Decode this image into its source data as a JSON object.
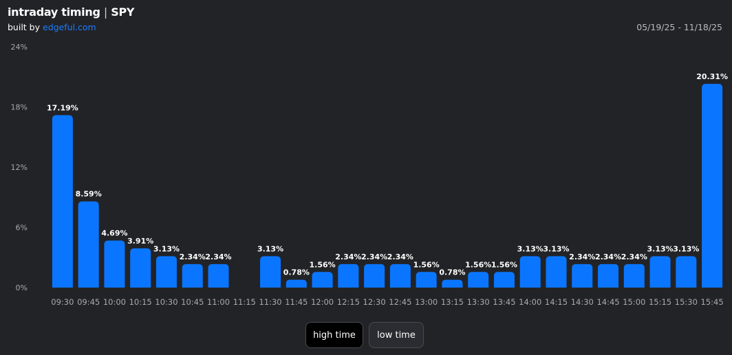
{
  "header": {
    "title": "intraday timing",
    "separator": "|",
    "ticker": "SPY",
    "built_by_prefix": "built by",
    "built_by_link": "edgeful.com",
    "date_range": "05/19/25 - 11/18/25"
  },
  "controls": {
    "high_time_label": "high time",
    "low_time_label": "low time",
    "selected": "high time"
  },
  "colors": {
    "background": "#222327",
    "bar": "#0a76ff",
    "link": "#1a7cff"
  },
  "chart_data": {
    "type": "bar",
    "categories": [
      "09:30",
      "09:45",
      "10:00",
      "10:15",
      "10:30",
      "10:45",
      "11:00",
      "11:15",
      "11:30",
      "11:45",
      "12:00",
      "12:15",
      "12:30",
      "12:45",
      "13:00",
      "13:15",
      "13:30",
      "13:45",
      "14:00",
      "14:15",
      "14:30",
      "14:45",
      "15:00",
      "15:15",
      "15:30",
      "15:45"
    ],
    "values": [
      17.19,
      8.59,
      4.69,
      3.91,
      3.13,
      2.34,
      2.34,
      0,
      3.13,
      0.78,
      1.56,
      2.34,
      2.34,
      2.34,
      1.56,
      0.78,
      1.56,
      1.56,
      3.13,
      3.13,
      2.34,
      2.34,
      2.34,
      3.13,
      3.13,
      20.31
    ],
    "data_labels": [
      "17.19%",
      "8.59%",
      "4.69%",
      "3.91%",
      "3.13%",
      "2.34%",
      "2.34%",
      "",
      "3.13%",
      "0.78%",
      "1.56%",
      "2.34%",
      "2.34%",
      "2.34%",
      "1.56%",
      "0.78%",
      "1.56%",
      "1.56%",
      "3.13%",
      "3.13%",
      "2.34%",
      "2.34%",
      "2.34%",
      "3.13%",
      "3.13%",
      "20.31%"
    ],
    "yticks": [
      0,
      6,
      12,
      18,
      24
    ],
    "ytick_labels": [
      "0%",
      "6%",
      "12%",
      "18%",
      "24%"
    ],
    "ylim": [
      0,
      24
    ],
    "grid": false,
    "legend": "none"
  }
}
